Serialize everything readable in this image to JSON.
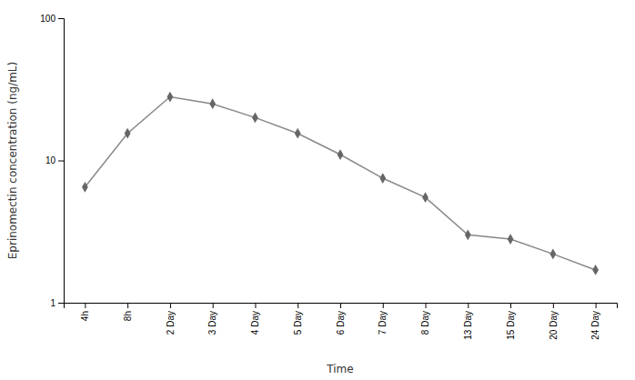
{
  "chart_data": {
    "type": "line",
    "categories": [
      "4h",
      "8h",
      "2 Day",
      "3 Day",
      "4 Day",
      "5 Day",
      "6 Day",
      "7 Day",
      "8 Day",
      "13 Day",
      "15 Day",
      "20 Day",
      "24 Day"
    ],
    "values": [
      6.5,
      15.5,
      28.0,
      25.0,
      20.0,
      15.5,
      11.0,
      7.5,
      5.5,
      3.0,
      2.8,
      2.2,
      1.7
    ],
    "color": "#888888",
    "marker": "diamond",
    "xlabel": "Time",
    "ylabel": "Eprinomectin concentration (ng/mL)",
    "log": "y",
    "ylim": [
      1,
      100
    ],
    "yticks": [
      1,
      10,
      100
    ],
    "grid": false
  }
}
